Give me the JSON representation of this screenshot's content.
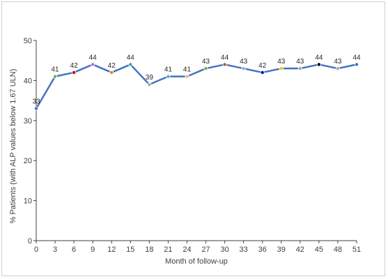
{
  "chart_data": {
    "type": "line",
    "title": "",
    "xlabel": "Month of follow-up",
    "ylabel": "% Patients (with ALP values below 1.67 ULN)",
    "x": [
      0,
      3,
      6,
      9,
      12,
      15,
      18,
      21,
      24,
      27,
      30,
      33,
      36,
      39,
      42,
      45,
      48,
      51
    ],
    "y": [
      33,
      41,
      42,
      44,
      42,
      44,
      39,
      41,
      41,
      43,
      44,
      43,
      42,
      43,
      43,
      44,
      43,
      44
    ],
    "data_labels": [
      "33",
      "41",
      "42",
      "44",
      "42",
      "44",
      "39",
      "41",
      "41",
      "43",
      "44",
      "43",
      "42",
      "43",
      "43",
      "44",
      "43",
      "44"
    ],
    "x_ticks": [
      "0",
      "3",
      "6",
      "9",
      "12",
      "15",
      "18",
      "21",
      "24",
      "27",
      "30",
      "33",
      "36",
      "39",
      "42",
      "45",
      "48",
      "51"
    ],
    "y_ticks": [
      "0",
      "10",
      "20",
      "30",
      "40",
      "50"
    ],
    "ylim": [
      0,
      50
    ],
    "xlim": [
      0,
      51
    ],
    "grid": false,
    "legend": "none",
    "line_color": "#4472C4",
    "marker_colors": [
      "#4472C4",
      "#70AD47",
      "#C00000",
      "#CC66CC",
      "#ED7D31",
      "#2FA5A0",
      "#A5A5A5",
      "#4BACC6",
      "#F4B183",
      "#70AD47",
      "#C55A11",
      "#8FAADC",
      "#0000CC",
      "#FFC000",
      "#A5A5A5",
      "#000000",
      "#A9A9A9",
      "#4472C4"
    ]
  }
}
